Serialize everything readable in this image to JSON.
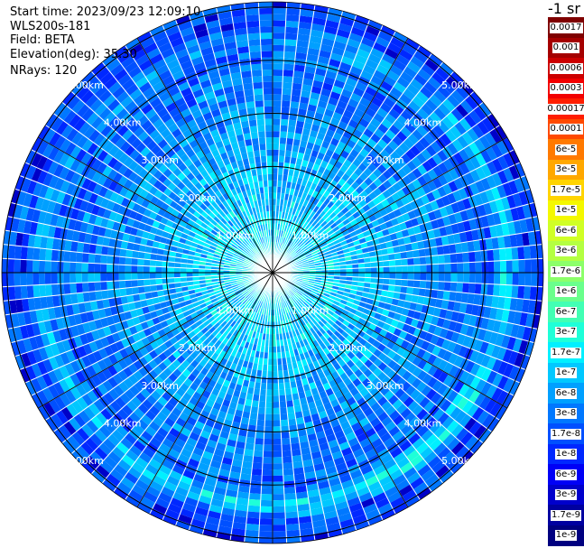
{
  "header": {
    "start_time": "Start time: 2023/09/23 12:09:10",
    "instrument": "WLS200s-181",
    "field": "Field: BETA",
    "elevation": "Elevation(deg): 35.30",
    "nrays": "NRays: 120"
  },
  "colorbar": {
    "unit_label": "-1 sr",
    "bands": [
      {
        "label": "0.0017",
        "color": "#7f0000"
      },
      {
        "label": "0.001",
        "color": "#a50000"
      },
      {
        "label": "0.0006",
        "color": "#cc0000"
      },
      {
        "label": "0.0003",
        "color": "#f20000"
      },
      {
        "label": "0.00017",
        "color": "#ff1e00"
      },
      {
        "label": "0.0001",
        "color": "#ff4a00"
      },
      {
        "label": "6e-5",
        "color": "#ff7a00"
      },
      {
        "label": "3e-5",
        "color": "#ffa800"
      },
      {
        "label": "1.7e-5",
        "color": "#ffd400"
      },
      {
        "label": "1e-5",
        "color": "#f4f800"
      },
      {
        "label": "6e-6",
        "color": "#d0ff26"
      },
      {
        "label": "3e-6",
        "color": "#b4ff42"
      },
      {
        "label": "1.7e-6",
        "color": "#8cff6a"
      },
      {
        "label": "1e-6",
        "color": "#6aff8c"
      },
      {
        "label": "6e-7",
        "color": "#42ffb4"
      },
      {
        "label": "3e-7",
        "color": "#1effd8"
      },
      {
        "label": "1.7e-7",
        "color": "#00f0ff"
      },
      {
        "label": "1e-7",
        "color": "#00c8ff"
      },
      {
        "label": "6e-8",
        "color": "#00a0ff"
      },
      {
        "label": "3e-8",
        "color": "#0078ff"
      },
      {
        "label": "1.7e-8",
        "color": "#0050ff"
      },
      {
        "label": "1e-8",
        "color": "#0028ff"
      },
      {
        "label": "6e-9",
        "color": "#0000f6"
      },
      {
        "label": "3e-9",
        "color": "#0000cc"
      },
      {
        "label": "1.7e-9",
        "color": "#0000a0"
      },
      {
        "label": "1e-9",
        "color": "#000080"
      }
    ]
  },
  "range_rings": [
    {
      "km": 1,
      "label": "1.00km"
    },
    {
      "km": 2,
      "label": "2.00km"
    },
    {
      "km": 3,
      "label": "3.00km"
    },
    {
      "km": 4,
      "label": "4.00km"
    },
    {
      "km": 5,
      "label": "5.00km"
    }
  ],
  "max_range_km": 5.1,
  "n_rays": 120,
  "bright_ring_km": 4.4
}
